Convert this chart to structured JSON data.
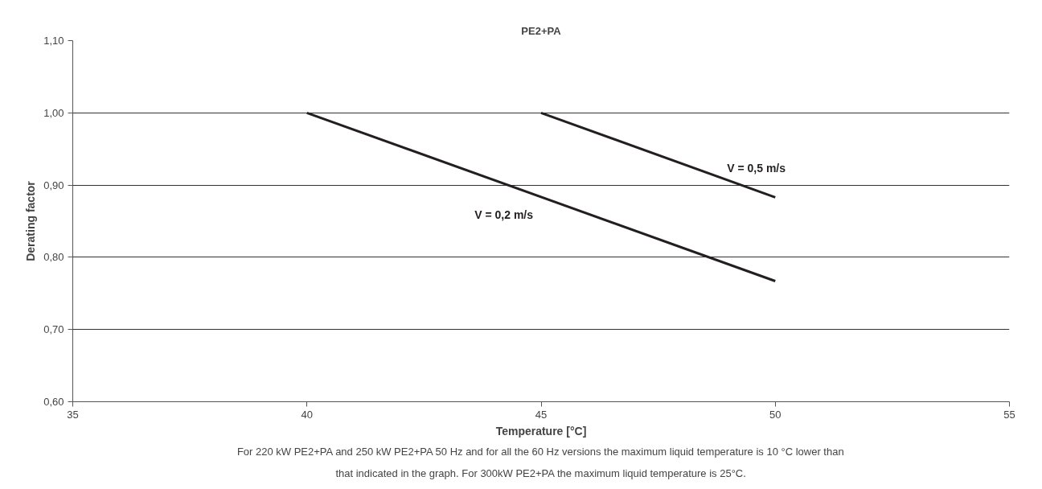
{
  "chart_data": {
    "type": "line",
    "title": "PE2+PA",
    "xlabel": "Temperature [°C]",
    "ylabel": "Derating factor",
    "series": [
      {
        "name": "V = 0,2 m/s",
        "color": "#231f20",
        "x": [
          40,
          50
        ],
        "values": [
          1.0,
          0.767
        ]
      },
      {
        "name": "V = 0,5 m/s",
        "color": "#231f20",
        "x": [
          45,
          50
        ],
        "values": [
          1.0,
          0.883
        ]
      }
    ],
    "xlim": [
      35,
      55
    ],
    "xticks": [
      35,
      40,
      45,
      50,
      55
    ],
    "ylim": [
      0.6,
      1.1
    ],
    "yticks": [
      {
        "value": 0.6,
        "label": "0,60"
      },
      {
        "value": 0.7,
        "label": "0,70"
      },
      {
        "value": 0.8,
        "label": "0,80"
      },
      {
        "value": 0.9,
        "label": "0,90"
      },
      {
        "value": 1.0,
        "label": "1,00"
      },
      {
        "value": 1.1,
        "label": "1,10"
      }
    ],
    "grid": "y",
    "legend": false,
    "marker": "none",
    "line_style": "solid",
    "annotations": [
      "For 220 kW PE2+PA and 250 kW PE2+PA 50 Hz and for all the 60 Hz versions the maximum liquid temperature is 10 °C lower than that indicated in the graph. For 300kW PE2+PA the maximum liquid temperature is 25°C."
    ]
  }
}
